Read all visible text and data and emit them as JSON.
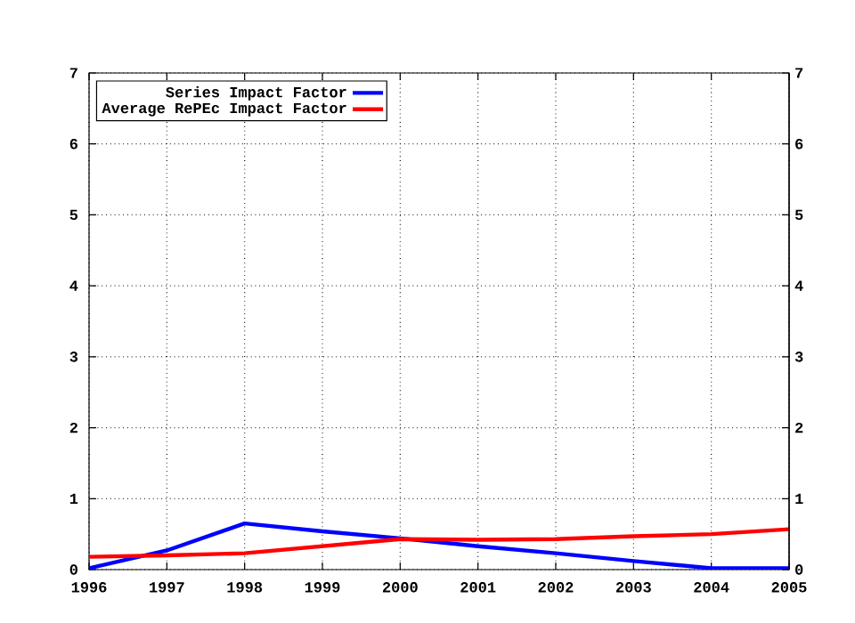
{
  "chart_data": {
    "type": "line",
    "x": [
      1996,
      1997,
      1998,
      1999,
      2000,
      2001,
      2002,
      2003,
      2004,
      2005
    ],
    "series": [
      {
        "name": "Series Impact Factor",
        "color": "#0000ff",
        "values": [
          0.02,
          0.27,
          0.65,
          0.54,
          0.44,
          0.33,
          0.23,
          0.12,
          0.02,
          0.02
        ]
      },
      {
        "name": "Average RePEc Impact Factor",
        "color": "#ff0000",
        "values": [
          0.18,
          0.2,
          0.23,
          0.33,
          0.43,
          0.42,
          0.43,
          0.47,
          0.5,
          0.57
        ]
      }
    ],
    "xlim": [
      1996,
      2005
    ],
    "xticks": [
      1996,
      1997,
      1998,
      1999,
      2000,
      2001,
      2002,
      2003,
      2004,
      2005
    ],
    "ylim": [
      0,
      7
    ],
    "yticks": [
      0,
      1,
      2,
      3,
      4,
      5,
      6,
      7
    ],
    "y2lim": [
      0,
      7
    ],
    "y2ticks": [
      0,
      1,
      2,
      3,
      4,
      5,
      6,
      7
    ],
    "grid": true,
    "legend": "top left"
  }
}
